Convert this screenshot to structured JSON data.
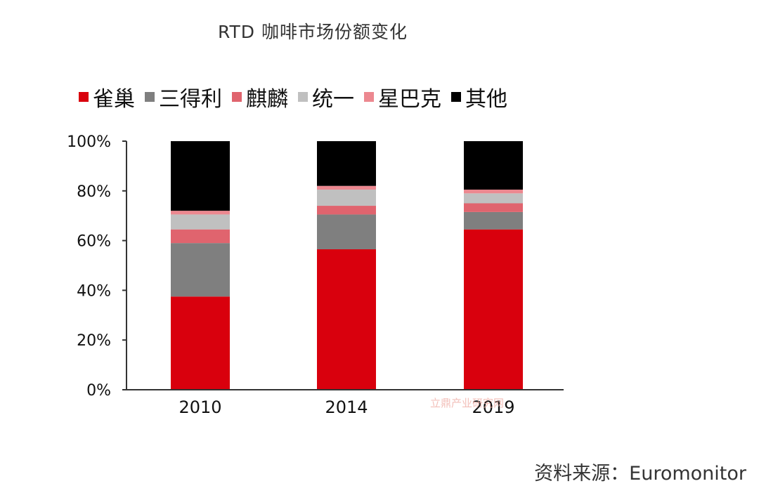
{
  "chart_data": {
    "type": "bar",
    "stacked": true,
    "title": "RTD 咖啡市场份额变化",
    "categories": [
      "2010",
      "2014",
      "2019"
    ],
    "series": [
      {
        "name": "雀巢",
        "color": "#d9000d",
        "values": [
          37.5,
          56.5,
          64.5
        ]
      },
      {
        "name": "三得利",
        "color": "#7f7f7f",
        "values": [
          21.5,
          14.0,
          7.0
        ]
      },
      {
        "name": "麒麟",
        "color": "#e0646e",
        "values": [
          5.5,
          3.5,
          3.5
        ]
      },
      {
        "name": "统一",
        "color": "#c0c0c0",
        "values": [
          6.0,
          6.5,
          4.0
        ]
      },
      {
        "name": "星巴克",
        "color": "#ec8890",
        "values": [
          1.5,
          1.5,
          1.5
        ]
      },
      {
        "name": "其他",
        "color": "#000000",
        "values": [
          28.0,
          18.0,
          19.5
        ]
      }
    ],
    "ylim": [
      0,
      100
    ],
    "yticks": [
      "0%",
      "20%",
      "40%",
      "60%",
      "80%",
      "100%"
    ],
    "grid": false,
    "legend_position": "top"
  },
  "watermark": "立鼎产业研究网",
  "source": "资料来源：Euromonitor"
}
